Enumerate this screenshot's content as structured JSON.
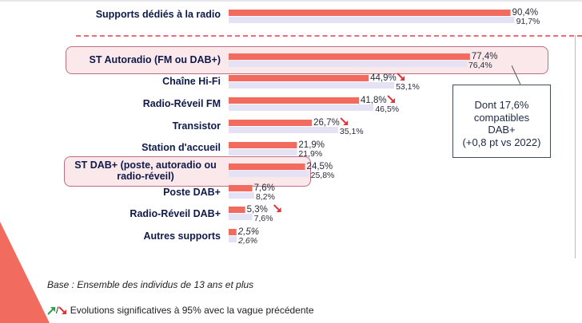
{
  "colors": {
    "bar_current": "#f26b5f",
    "bar_previous": "#e5e2f5",
    "arrow_down": "#e2363d",
    "arrow_up": "#2e9e4f",
    "highlight": "#bf6f82"
  },
  "chart_data": {
    "type": "bar",
    "orientation": "horizontal",
    "xlim": [
      0,
      100
    ],
    "categories": [
      "Supports dédiés à la radio",
      "ST Autoradio (FM ou DAB+)",
      "Chaîne Hi-Fi",
      "Radio-Réveil FM",
      "Transistor",
      "Station d'accueil",
      "ST DAB+ (poste, autoradio ou radio-réveil)",
      "Poste DAB+",
      "Radio-Réveil DAB+",
      "Autres supports"
    ],
    "series": [
      {
        "values": [
          90.4,
          77.4,
          44.9,
          41.8,
          26.7,
          21.9,
          24.5,
          7.6,
          5.3,
          2.5
        ]
      },
      {
        "values": [
          91.7,
          76.4,
          53.1,
          46.5,
          35.1,
          21.9,
          25.8,
          8.2,
          7.6,
          2.6
        ]
      }
    ],
    "labels_current": [
      "90,4%",
      "77,4%",
      "44,9%",
      "41,8%",
      "26,7%",
      "21,9%",
      "24,5%",
      "7,6%",
      "5,3%",
      "2,5%"
    ],
    "labels_previous": [
      "91,7%",
      "76,4%",
      "53,1%",
      "46,5%",
      "35,1%",
      "21,9%",
      "25,8%",
      "8,2%",
      "7,6%",
      "2,6%"
    ],
    "significant_down": [
      false,
      false,
      true,
      true,
      true,
      false,
      false,
      false,
      true,
      false
    ],
    "highlighted": [
      false,
      true,
      false,
      false,
      false,
      false,
      true,
      false,
      false,
      false
    ],
    "italic_values": [
      false,
      false,
      false,
      false,
      false,
      false,
      false,
      false,
      false,
      true
    ]
  },
  "callout": {
    "lines": [
      "Dont 17,6%",
      "compatibles",
      "DAB+",
      "(+0,8 pt vs 2022)"
    ]
  },
  "footnote": "Base : Ensemble des individus de 13 ans et plus",
  "legend": {
    "separator": "/",
    "text": "Evolutions significatives à 95% avec la vague précédente"
  }
}
